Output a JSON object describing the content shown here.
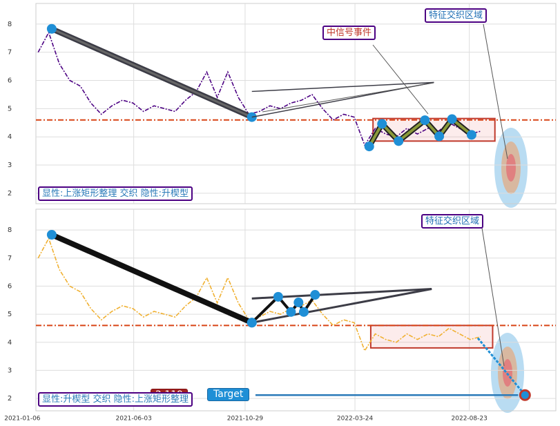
{
  "chart_data": [
    {
      "type": "line",
      "x": [
        "2021-01-27",
        "2021-02-10",
        "2021-02-24",
        "2021-03-10",
        "2021-03-24",
        "2021-04-07",
        "2021-04-21",
        "2021-05-05",
        "2021-05-19",
        "2021-06-02",
        "2021-06-16",
        "2021-06-30",
        "2021-07-14",
        "2021-07-28",
        "2021-08-11",
        "2021-08-25",
        "2021-09-08",
        "2021-09-22",
        "2021-10-06",
        "2021-10-20",
        "2021-11-03",
        "2021-11-17",
        "2021-12-01",
        "2021-12-15",
        "2021-12-29",
        "2022-01-12",
        "2022-01-26",
        "2022-02-09",
        "2022-02-23",
        "2022-03-09",
        "2022-03-23",
        "2022-04-06",
        "2022-04-20",
        "2022-05-04",
        "2022-05-18",
        "2022-06-01",
        "2022-06-15",
        "2022-06-29",
        "2022-07-13",
        "2022-07-27",
        "2022-08-10",
        "2022-08-24",
        "2022-09-07"
      ],
      "series": [
        {
          "color": "#4b0082",
          "values": [
            7.0,
            7.7,
            6.6,
            6.0,
            5.8,
            5.2,
            4.8,
            5.1,
            5.3,
            5.2,
            4.9,
            5.1,
            5.0,
            4.9,
            5.3,
            5.6,
            6.3,
            5.4,
            6.3,
            5.4,
            4.8,
            4.9,
            5.1,
            5.0,
            5.2,
            5.3,
            5.5,
            5.0,
            4.6,
            4.8,
            4.7,
            3.7,
            4.3,
            4.1,
            4.0,
            4.3,
            4.1,
            4.3,
            4.2,
            4.5,
            4.3,
            4.1,
            4.2
          ]
        }
      ],
      "xlim": [
        "2021-01-24",
        "2022-12-16"
      ],
      "ylim": [
        1.63,
        8.73
      ],
      "yticks": [
        2,
        3,
        4,
        5,
        6,
        7,
        8
      ],
      "grid": true,
      "hline": {
        "value": 4.6,
        "color": "#d84315"
      },
      "trend": {
        "x": [
          "2021-02-14",
          "2021-11-07"
        ],
        "y": [
          7.83,
          4.7
        ],
        "color": "#3c3c46"
      },
      "wedge": {
        "x": [
          "2021-11-07",
          "2022-07-07"
        ],
        "upper": [
          5.61,
          5.93
        ],
        "lower": [
          4.7,
          5.93
        ]
      },
      "pattern": {
        "x": [
          "2022-04-12",
          "2022-04-29",
          "2022-05-21",
          "2022-06-25",
          "2022-07-14",
          "2022-07-31",
          "2022-08-26"
        ],
        "y": [
          3.66,
          4.46,
          3.85,
          4.59,
          4.02,
          4.63,
          4.07
        ],
        "color": "#8a9a3a"
      },
      "box": {
        "x": [
          "2022-04-17",
          "2022-09-26"
        ],
        "y": [
          3.85,
          4.65
        ]
      },
      "annotations": [
        "中信号事件",
        "特征交织区域"
      ],
      "label": "显性:上涨矩形整理 交织 隐性:升楔型"
    },
    {
      "type": "line",
      "x": [
        "2021-01-27",
        "2021-02-10",
        "2021-02-24",
        "2021-03-10",
        "2021-03-24",
        "2021-04-07",
        "2021-04-21",
        "2021-05-05",
        "2021-05-19",
        "2021-06-02",
        "2021-06-16",
        "2021-06-30",
        "2021-07-14",
        "2021-07-28",
        "2021-08-11",
        "2021-08-25",
        "2021-09-08",
        "2021-09-22",
        "2021-10-06",
        "2021-10-20",
        "2021-11-03",
        "2021-11-17",
        "2021-12-01",
        "2021-12-15",
        "2021-12-29",
        "2022-01-12",
        "2022-01-26",
        "2022-02-09",
        "2022-02-23",
        "2022-03-09",
        "2022-03-23",
        "2022-04-06",
        "2022-04-20",
        "2022-05-04",
        "2022-05-18",
        "2022-06-01",
        "2022-06-15",
        "2022-06-29",
        "2022-07-13",
        "2022-07-27",
        "2022-08-10",
        "2022-08-24",
        "2022-09-07"
      ],
      "series": [
        {
          "color": "#f0b030",
          "values": [
            7.0,
            7.7,
            6.6,
            6.0,
            5.8,
            5.2,
            4.8,
            5.1,
            5.3,
            5.2,
            4.9,
            5.1,
            5.0,
            4.9,
            5.3,
            5.6,
            6.3,
            5.4,
            6.3,
            5.4,
            4.8,
            4.9,
            5.1,
            5.0,
            5.2,
            5.3,
            5.5,
            5.0,
            4.6,
            4.8,
            4.7,
            3.7,
            4.3,
            4.1,
            4.0,
            4.3,
            4.1,
            4.3,
            4.2,
            4.5,
            4.3,
            4.1,
            4.2
          ]
        }
      ],
      "xlim": [
        "2021-01-24",
        "2022-12-16"
      ],
      "ylim": [
        1.56,
        8.74
      ],
      "yticks": [
        2,
        3,
        4,
        5,
        6,
        7,
        8
      ],
      "grid": true,
      "xticks": [
        "2021-01-06",
        "2021-06-03",
        "2021-10-29",
        "2022-03-24",
        "2022-08-23"
      ],
      "hline": {
        "value": 4.6,
        "color": "#d84315"
      },
      "trend": {
        "x": [
          "2021-02-14",
          "2021-11-07"
        ],
        "y": [
          7.83,
          4.7
        ],
        "color": "#111111"
      },
      "wedge": {
        "x": [
          "2021-11-07",
          "2022-07-04"
        ],
        "upper": [
          5.56,
          5.9
        ],
        "lower": [
          4.7,
          5.9
        ]
      },
      "pattern": {
        "x": [
          "2021-11-07",
          "2021-12-12",
          "2021-12-29",
          "2022-01-08",
          "2022-01-15",
          "2022-01-30"
        ],
        "y": [
          4.7,
          5.62,
          5.08,
          5.42,
          5.08,
          5.69
        ],
        "color": "#111111"
      },
      "box": {
        "x": [
          "2022-04-14",
          "2022-09-23"
        ],
        "y": [
          3.8,
          4.6
        ]
      },
      "target": {
        "x": "2022-11-05",
        "value": 2.119,
        "label": "Target"
      },
      "annotations": [
        "特征交织区域"
      ],
      "label": "显性:升楔型 交织 隐性:上涨矩形整理"
    }
  ]
}
